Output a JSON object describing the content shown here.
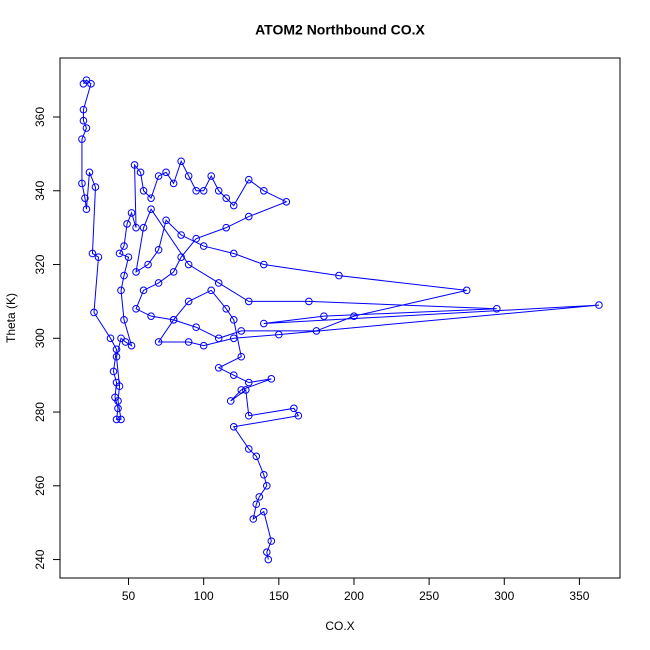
{
  "chart_data": {
    "type": "line",
    "markers": true,
    "color": "#0000ff",
    "title": "ATOM2 Northbound CO.X",
    "x_label": "CO.X",
    "y_label": "Theta (K)",
    "xlim": [
      4.4,
      377
    ],
    "ylim": [
      235,
      376
    ],
    "xticks": [
      50,
      100,
      150,
      200,
      250,
      300,
      350
    ],
    "yticks": [
      240,
      260,
      280,
      300,
      320,
      340,
      360
    ],
    "x": [
      20,
      22,
      25,
      20,
      20,
      22,
      19,
      19,
      21,
      22,
      24,
      28,
      26,
      30,
      27,
      38,
      42,
      40,
      42,
      41,
      43,
      42,
      45,
      43,
      44,
      42,
      45,
      48,
      52,
      47,
      45,
      47,
      50,
      44,
      47,
      49,
      52,
      55,
      54,
      58,
      60,
      65,
      70,
      75,
      80,
      85,
      90,
      95,
      100,
      105,
      110,
      115,
      120,
      130,
      140,
      155,
      130,
      115,
      95,
      85,
      80,
      70,
      60,
      55,
      65,
      80,
      95,
      110,
      125,
      175,
      200,
      275,
      190,
      140,
      120,
      100,
      85,
      75,
      70,
      63,
      55,
      60,
      65,
      90,
      110,
      130,
      170,
      295,
      180,
      140,
      363,
      150,
      120,
      100,
      90,
      70,
      80,
      90,
      105,
      115,
      120,
      125,
      110,
      120,
      130,
      145,
      125,
      118,
      128,
      130,
      160,
      163,
      120,
      130,
      135,
      140,
      142,
      137,
      135,
      133,
      140,
      145,
      142,
      143
    ],
    "values": [
      369,
      370,
      369,
      362,
      359,
      357,
      354,
      342,
      338,
      335,
      345,
      341,
      323,
      322,
      307,
      300,
      297,
      291,
      288,
      284,
      281,
      278,
      278,
      283,
      287,
      295,
      300,
      299,
      298,
      305,
      313,
      317,
      322,
      323,
      325,
      331,
      334,
      330,
      347,
      345,
      340,
      338,
      344,
      345,
      342,
      348,
      344,
      340,
      340,
      344,
      340,
      338,
      336,
      343,
      340,
      337,
      333,
      330,
      327,
      322,
      318,
      315,
      313,
      308,
      306,
      305,
      303,
      300,
      302,
      302,
      306,
      313,
      317,
      320,
      323,
      325,
      328,
      332,
      324,
      320,
      318,
      330,
      335,
      320,
      315,
      310,
      310,
      308,
      306,
      304,
      309,
      301,
      300,
      298,
      299,
      299,
      305,
      310,
      313,
      308,
      305,
      295,
      292,
      290,
      288,
      289,
      286,
      283,
      286,
      279,
      281,
      279,
      276,
      270,
      268,
      263,
      260,
      257,
      255,
      251,
      253,
      245,
      242,
      240
    ]
  }
}
